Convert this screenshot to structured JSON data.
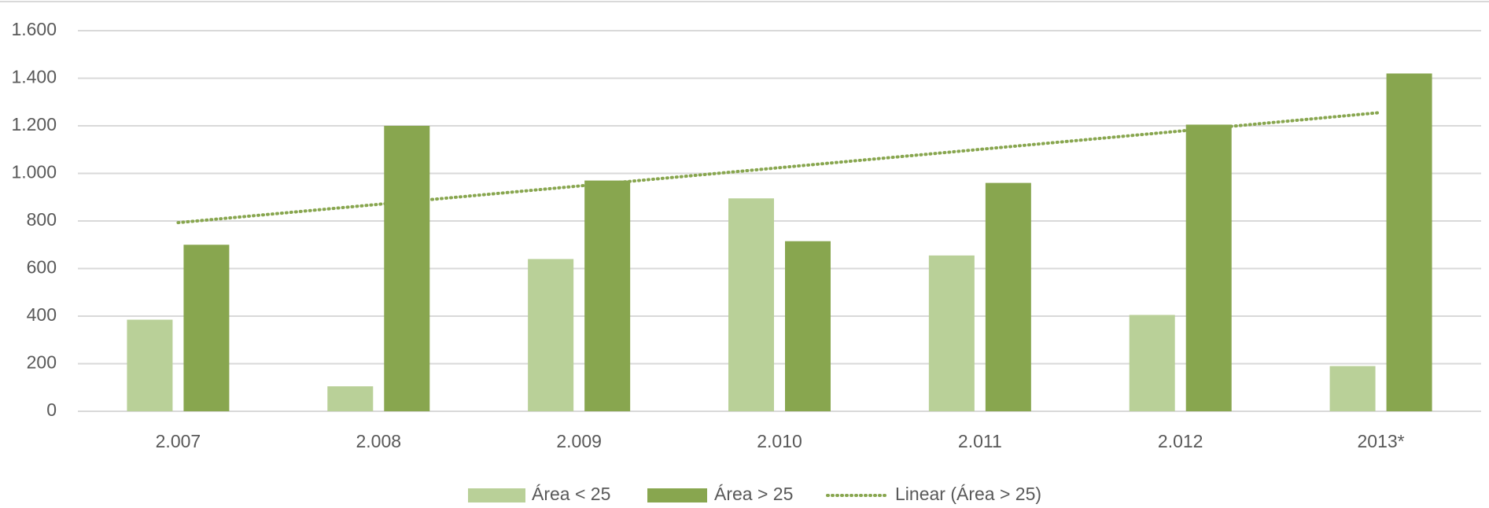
{
  "chart_data": {
    "type": "bar",
    "categories": [
      "2.007",
      "2.008",
      "2.009",
      "2.010",
      "2.011",
      "2.012",
      "2013*"
    ],
    "series": [
      {
        "name": "Área < 25",
        "color": "#b9d098",
        "values": [
          385,
          105,
          640,
          895,
          655,
          405,
          190
        ]
      },
      {
        "name": "Área > 25",
        "color": "#88a64f",
        "values": [
          700,
          1200,
          970,
          715,
          960,
          1205,
          1420
        ]
      },
      {
        "name": "Linear (Área > 25)",
        "type": "trendline",
        "color": "#88a64f",
        "values": [
          793,
          870,
          947,
          1024,
          1101,
          1178,
          1256
        ]
      }
    ],
    "ylim": [
      0,
      1600
    ],
    "yticks": [
      0,
      200,
      400,
      600,
      800,
      {
        "value": 1000,
        "label": "1.000"
      },
      {
        "value": 1200,
        "label": "1.200"
      },
      {
        "value": 1400,
        "label": "1.400"
      },
      {
        "value": 1600,
        "label": "1.600"
      }
    ],
    "grid": true,
    "legend": "bottom"
  }
}
